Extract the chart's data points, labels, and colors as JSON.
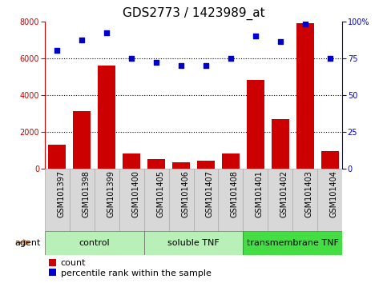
{
  "title": "GDS2773 / 1423989_at",
  "samples": [
    "GSM101397",
    "GSM101398",
    "GSM101399",
    "GSM101400",
    "GSM101405",
    "GSM101406",
    "GSM101407",
    "GSM101408",
    "GSM101401",
    "GSM101402",
    "GSM101403",
    "GSM101404"
  ],
  "counts": [
    1300,
    3100,
    5600,
    800,
    500,
    350,
    430,
    800,
    4800,
    2700,
    7900,
    950
  ],
  "percentiles": [
    80,
    87,
    92,
    75,
    72,
    70,
    70,
    75,
    90,
    86,
    98,
    75
  ],
  "groups": [
    {
      "label": "control",
      "start": 0,
      "end": 4,
      "color": "#b8f0b8"
    },
    {
      "label": "soluble TNF",
      "start": 4,
      "end": 8,
      "color": "#b8f0b8"
    },
    {
      "label": "transmembrane TNF",
      "start": 8,
      "end": 12,
      "color": "#44dd44"
    }
  ],
  "ylim_left": [
    0,
    8000
  ],
  "ylim_right": [
    0,
    100
  ],
  "yticks_left": [
    0,
    2000,
    4000,
    6000,
    8000
  ],
  "yticks_right": [
    0,
    25,
    50,
    75,
    100
  ],
  "bar_color": "#cc0000",
  "dot_color": "#0000cc",
  "bg_color": "#ffffff",
  "sample_box_color": "#d8d8d8",
  "agent_label": "agent",
  "legend_count": "count",
  "legend_pct": "percentile rank within the sample",
  "title_fontsize": 11,
  "tick_fontsize": 7,
  "group_fontsize": 8,
  "legend_fontsize": 8
}
